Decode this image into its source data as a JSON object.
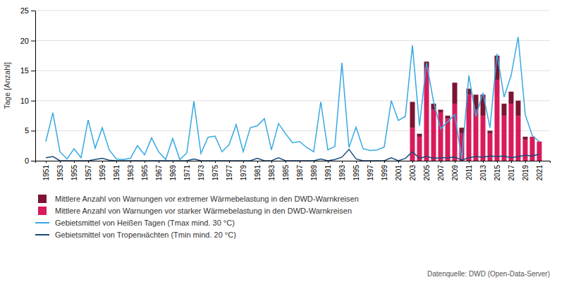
{
  "chart_data": {
    "type": "bar",
    "y_label": "Tage [Anzahl]",
    "x": [
      1951,
      1952,
      1953,
      1954,
      1955,
      1956,
      1957,
      1958,
      1959,
      1960,
      1961,
      1962,
      1963,
      1964,
      1965,
      1966,
      1967,
      1968,
      1969,
      1970,
      1971,
      1972,
      1973,
      1974,
      1975,
      1976,
      1977,
      1978,
      1979,
      1980,
      1981,
      1982,
      1983,
      1984,
      1985,
      1986,
      1987,
      1988,
      1989,
      1990,
      1991,
      1992,
      1993,
      1994,
      1995,
      1996,
      1997,
      1998,
      1999,
      2000,
      2001,
      2002,
      2003,
      2004,
      2005,
      2006,
      2007,
      2008,
      2009,
      2010,
      2011,
      2012,
      2013,
      2014,
      2015,
      2016,
      2017,
      2018,
      2019,
      2020,
      2021
    ],
    "series": [
      {
        "name": "Mittlere Anzahl von Warnungen vor starker Wärmebelastung in den DWD-Warnkreisen",
        "type": "bar",
        "color": "#D81B5A",
        "values": [
          null,
          null,
          null,
          null,
          null,
          null,
          null,
          null,
          null,
          null,
          null,
          null,
          null,
          null,
          null,
          null,
          null,
          null,
          null,
          null,
          null,
          null,
          null,
          null,
          null,
          null,
          null,
          null,
          null,
          null,
          null,
          null,
          null,
          null,
          null,
          null,
          null,
          null,
          null,
          null,
          null,
          null,
          null,
          null,
          null,
          null,
          null,
          null,
          null,
          null,
          null,
          null,
          5.5,
          4.0,
          15.5,
          8.5,
          8.0,
          7.0,
          9.5,
          4.5,
          11.0,
          8.5,
          7.5,
          4.5,
          13.5,
          7.5,
          9.5,
          7.5,
          3.5,
          4.0,
          3.2
        ]
      },
      {
        "name": "Mittlere Anzahl von Warnungen vor extremer Wärmebelastung in den DWD-Warnkreisen",
        "type": "bar",
        "color": "#7B1532",
        "values": [
          null,
          null,
          null,
          null,
          null,
          null,
          null,
          null,
          null,
          null,
          null,
          null,
          null,
          null,
          null,
          null,
          null,
          null,
          null,
          null,
          null,
          null,
          null,
          null,
          null,
          null,
          null,
          null,
          null,
          null,
          null,
          null,
          null,
          null,
          null,
          null,
          null,
          null,
          null,
          null,
          null,
          null,
          null,
          null,
          null,
          null,
          null,
          null,
          null,
          null,
          null,
          null,
          4.3,
          0.5,
          1.0,
          1.0,
          0.5,
          0.5,
          3.5,
          1.0,
          1.0,
          2.5,
          3.5,
          0.5,
          4.0,
          2.0,
          2.0,
          2.5,
          0.5,
          0.0,
          0.0
        ]
      },
      {
        "name": "Gebietsmittel von Heißen Tagen (Tmax mind. 30 °C)",
        "type": "line",
        "color": "#36A9E1",
        "values": [
          3.2,
          8.0,
          1.5,
          0.3,
          2.0,
          0.5,
          6.8,
          2.1,
          5.5,
          1.8,
          0.3,
          0.2,
          0.4,
          2.5,
          1.0,
          3.8,
          1.5,
          0.2,
          3.7,
          0.2,
          1.3,
          9.9,
          1.2,
          3.9,
          4.1,
          1.5,
          2.7,
          6.0,
          1.5,
          5.5,
          5.8,
          7.0,
          1.8,
          6.2,
          4.5,
          3.0,
          3.2,
          2.2,
          1.5,
          9.8,
          1.8,
          2.4,
          16.3,
          2.2,
          5.6,
          2.0,
          1.7,
          1.8,
          2.3,
          10.0,
          6.7,
          7.4,
          19.2,
          5.8,
          16.3,
          9.8,
          5.3,
          6.5,
          7.7,
          0.3,
          14.2,
          7.4,
          11.3,
          5.5,
          17.8,
          10.6,
          14.2,
          20.6,
          7.7,
          4.2,
          3.2
        ]
      },
      {
        "name": "Gebietsmittel von Tropenнächten (Tmin mind. 20 °C)",
        "type": "line",
        "color": "#1A4A7A",
        "values": [
          0.5,
          0.7,
          0.0,
          0.0,
          0.0,
          0.0,
          0.0,
          0.2,
          0.4,
          0.1,
          0.0,
          0.0,
          0.0,
          0.0,
          0.0,
          0.0,
          0.0,
          0.0,
          0.0,
          0.0,
          0.0,
          0.3,
          0.0,
          0.0,
          0.0,
          0.0,
          0.0,
          0.0,
          0.0,
          0.0,
          0.4,
          0.0,
          0.0,
          0.5,
          0.0,
          0.0,
          0.0,
          0.0,
          0.0,
          0.3,
          0.0,
          0.2,
          0.6,
          1.9,
          0.3,
          0.0,
          0.0,
          0.0,
          0.0,
          0.5,
          0.0,
          0.4,
          1.5,
          0.4,
          0.7,
          0.4,
          0.5,
          0.5,
          0.6,
          0.1,
          0.5,
          0.7,
          0.6,
          0.8,
          0.7,
          0.8,
          0.5,
          0.7,
          0.9,
          0.8,
          1.1
        ]
      }
    ],
    "stacked": true,
    "xlim": [
      1949.5,
      2022.5
    ],
    "xticks": [
      1951,
      1953,
      1955,
      1957,
      1959,
      1961,
      1963,
      1965,
      1967,
      1969,
      1971,
      1973,
      1975,
      1977,
      1979,
      1981,
      1983,
      1985,
      1987,
      1989,
      1991,
      1993,
      1995,
      1997,
      1999,
      2001,
      2003,
      2005,
      2007,
      2009,
      2011,
      2013,
      2015,
      2017,
      2019,
      2021
    ],
    "ylim": [
      0,
      25
    ],
    "yticks": [
      0,
      5,
      10,
      15,
      20,
      25
    ],
    "grid": true,
    "legend": "bottom",
    "annotations": [
      "Datenquelle: DWD (Open-Data-Server)"
    ]
  }
}
